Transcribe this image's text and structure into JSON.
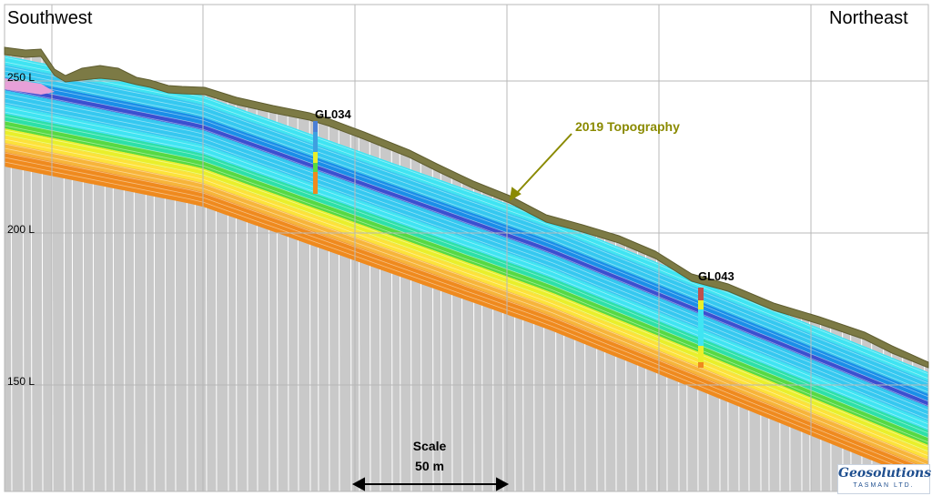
{
  "directions": {
    "left": "Southwest",
    "right": "Northeast"
  },
  "levels": [
    "250 L",
    "200 L",
    "150 L"
  ],
  "drillholes": [
    "GL034",
    "GL043"
  ],
  "topography_label": "2019 Topography",
  "scale": {
    "title": "Scale",
    "value": "50 m"
  },
  "logo": {
    "name": "Geosolutions",
    "sub": "TASMAN LTD."
  },
  "legend_colors": {
    "topography": "#7c7a45",
    "ground": "#c9c9c9",
    "grade_ramp": [
      "#e8a0d8",
      "#ef8a1e",
      "#f7b43a",
      "#fde23a",
      "#e9ef2a",
      "#56d943",
      "#2ce0a8",
      "#3fe4f2",
      "#35c8f0",
      "#1a8ee8",
      "#3b4fd0"
    ]
  }
}
